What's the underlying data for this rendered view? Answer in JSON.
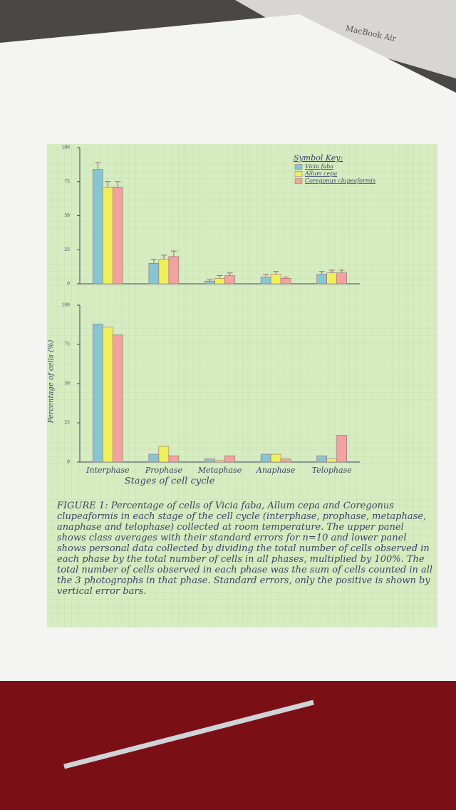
{
  "background_text": "MacBook Air",
  "chart_data": [
    {
      "type": "bar",
      "categories": [
        null,
        null,
        null,
        null,
        null
      ],
      "ylim": [
        0,
        100
      ],
      "yticks": [
        0,
        25,
        50,
        75,
        100
      ],
      "legend": {
        "title": "Symbol Key:",
        "position": "upper right"
      },
      "series": [
        {
          "name": "Vicia faba",
          "color": "#86c6d3",
          "values": [
            84,
            15,
            2,
            5,
            7
          ],
          "errors": [
            5,
            3,
            1,
            2,
            2
          ]
        },
        {
          "name": "Allum cepa",
          "color": "#eef05a",
          "values": [
            71,
            18,
            4,
            7,
            8
          ],
          "errors": [
            4,
            3,
            2,
            2,
            2
          ]
        },
        {
          "name": "Coregonus clupeaformis",
          "color": "#f2a3a0",
          "values": [
            71,
            20,
            6,
            4,
            8
          ],
          "errors": [
            4,
            4,
            2,
            1,
            2
          ]
        }
      ]
    },
    {
      "type": "bar",
      "ylabel": "Percentage of cells (%)",
      "xlabel": "Stages of cell cycle",
      "categories": [
        "Interphase",
        "Prophase",
        "Metaphase",
        "Anaphase",
        "Telophase"
      ],
      "ylim": [
        0,
        100
      ],
      "yticks": [
        0,
        25,
        50,
        75,
        100
      ],
      "series": [
        {
          "color": "#86c6d3",
          "values": [
            88,
            5,
            2,
            5,
            4
          ]
        },
        {
          "color": "#eef05a",
          "values": [
            86,
            10,
            1,
            5,
            2
          ]
        },
        {
          "color": "#f2a3a0",
          "values": [
            81,
            4,
            4,
            2,
            17
          ]
        }
      ]
    }
  ],
  "caption": "FIGURE 1: Percentage of cells of Vicia faba, Allum cepa and Coregonus clupeaformis in each stage of the cell cycle (interphase, prophase, metaphase, anaphase and telophase) collected at room temperature. The upper panel shows class averages with their standard errors for n=10 and lower panel shows personal data collected by dividing the total number of cells observed in each phase by the total number of cells in all phases, multiplied by 100%. The total number of cells observed in each phase was the sum of cells counted in all the 3 photographs in that phase. Standard errors, only the positive is shown by vertical error bars."
}
